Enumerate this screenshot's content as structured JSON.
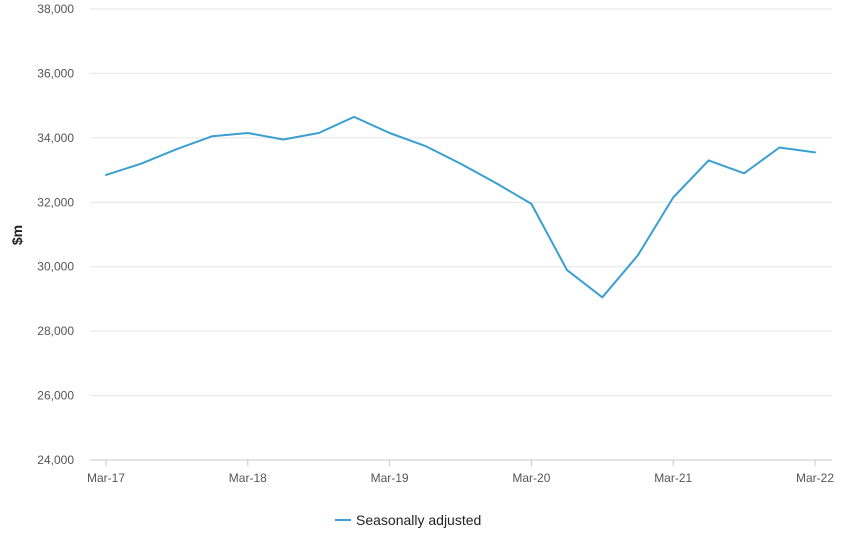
{
  "chart_data": {
    "type": "line",
    "title": "",
    "xlabel": "",
    "ylabel": "$m",
    "ylim": [
      24000,
      38000
    ],
    "y_ticks": [
      "24,000",
      "26,000",
      "28,000",
      "30,000",
      "32,000",
      "34,000",
      "36,000",
      "38,000"
    ],
    "y_tick_values": [
      24000,
      26000,
      28000,
      30000,
      32000,
      34000,
      36000,
      38000
    ],
    "x": [
      "Mar-17",
      "Jun-17",
      "Sep-17",
      "Dec-17",
      "Mar-18",
      "Jun-18",
      "Sep-18",
      "Dec-18",
      "Mar-19",
      "Jun-19",
      "Sep-19",
      "Dec-19",
      "Mar-20",
      "Jun-20",
      "Sep-20",
      "Dec-20",
      "Mar-21",
      "Jun-21",
      "Sep-21",
      "Dec-21",
      "Mar-22"
    ],
    "x_tick_labels": [
      "Mar-17",
      "Mar-18",
      "Mar-19",
      "Mar-20",
      "Mar-21",
      "Mar-22"
    ],
    "series": [
      {
        "name": "Seasonally adjusted",
        "color": "#3a9fd1",
        "values": [
          32850,
          33200,
          33650,
          34050,
          34150,
          33950,
          34150,
          34650,
          34150,
          33750,
          33200,
          32600,
          31950,
          29900,
          29050,
          30350,
          32150,
          33300,
          32900,
          33700,
          33550
        ]
      }
    ],
    "grid": true,
    "legend_position": "bottom-center"
  }
}
